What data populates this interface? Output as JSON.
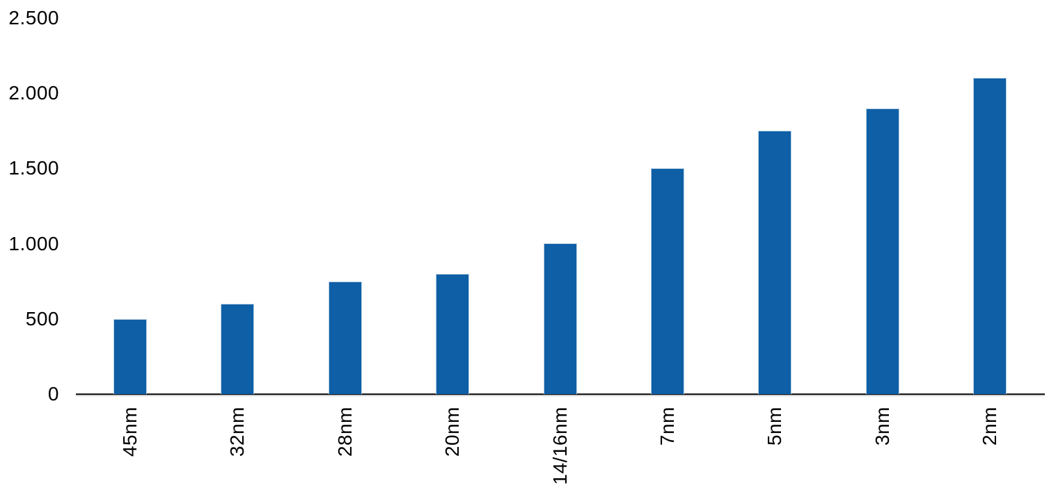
{
  "chart_data": {
    "type": "bar",
    "categories": [
      "45nm",
      "32nm",
      "28nm",
      "20nm",
      "14/16nm",
      "7nm",
      "5nm",
      "3nm",
      "2nm"
    ],
    "values": [
      500,
      600,
      750,
      800,
      1000,
      1500,
      1750,
      1900,
      2100
    ],
    "y_tick_values": [
      0,
      500,
      1000,
      1500,
      2000,
      2500
    ],
    "y_tick_labels": [
      "0",
      "500",
      "1.000",
      "1.500",
      "2.000",
      "2.500"
    ],
    "ylim": [
      0,
      2500
    ],
    "grid": "off",
    "legend": "none",
    "bar_color": "#0e5fa6",
    "bar_border_color": "#b7cfe3",
    "axis_line_color": "#161616",
    "label_color": "#000000",
    "background_color": "#ffffff"
  }
}
